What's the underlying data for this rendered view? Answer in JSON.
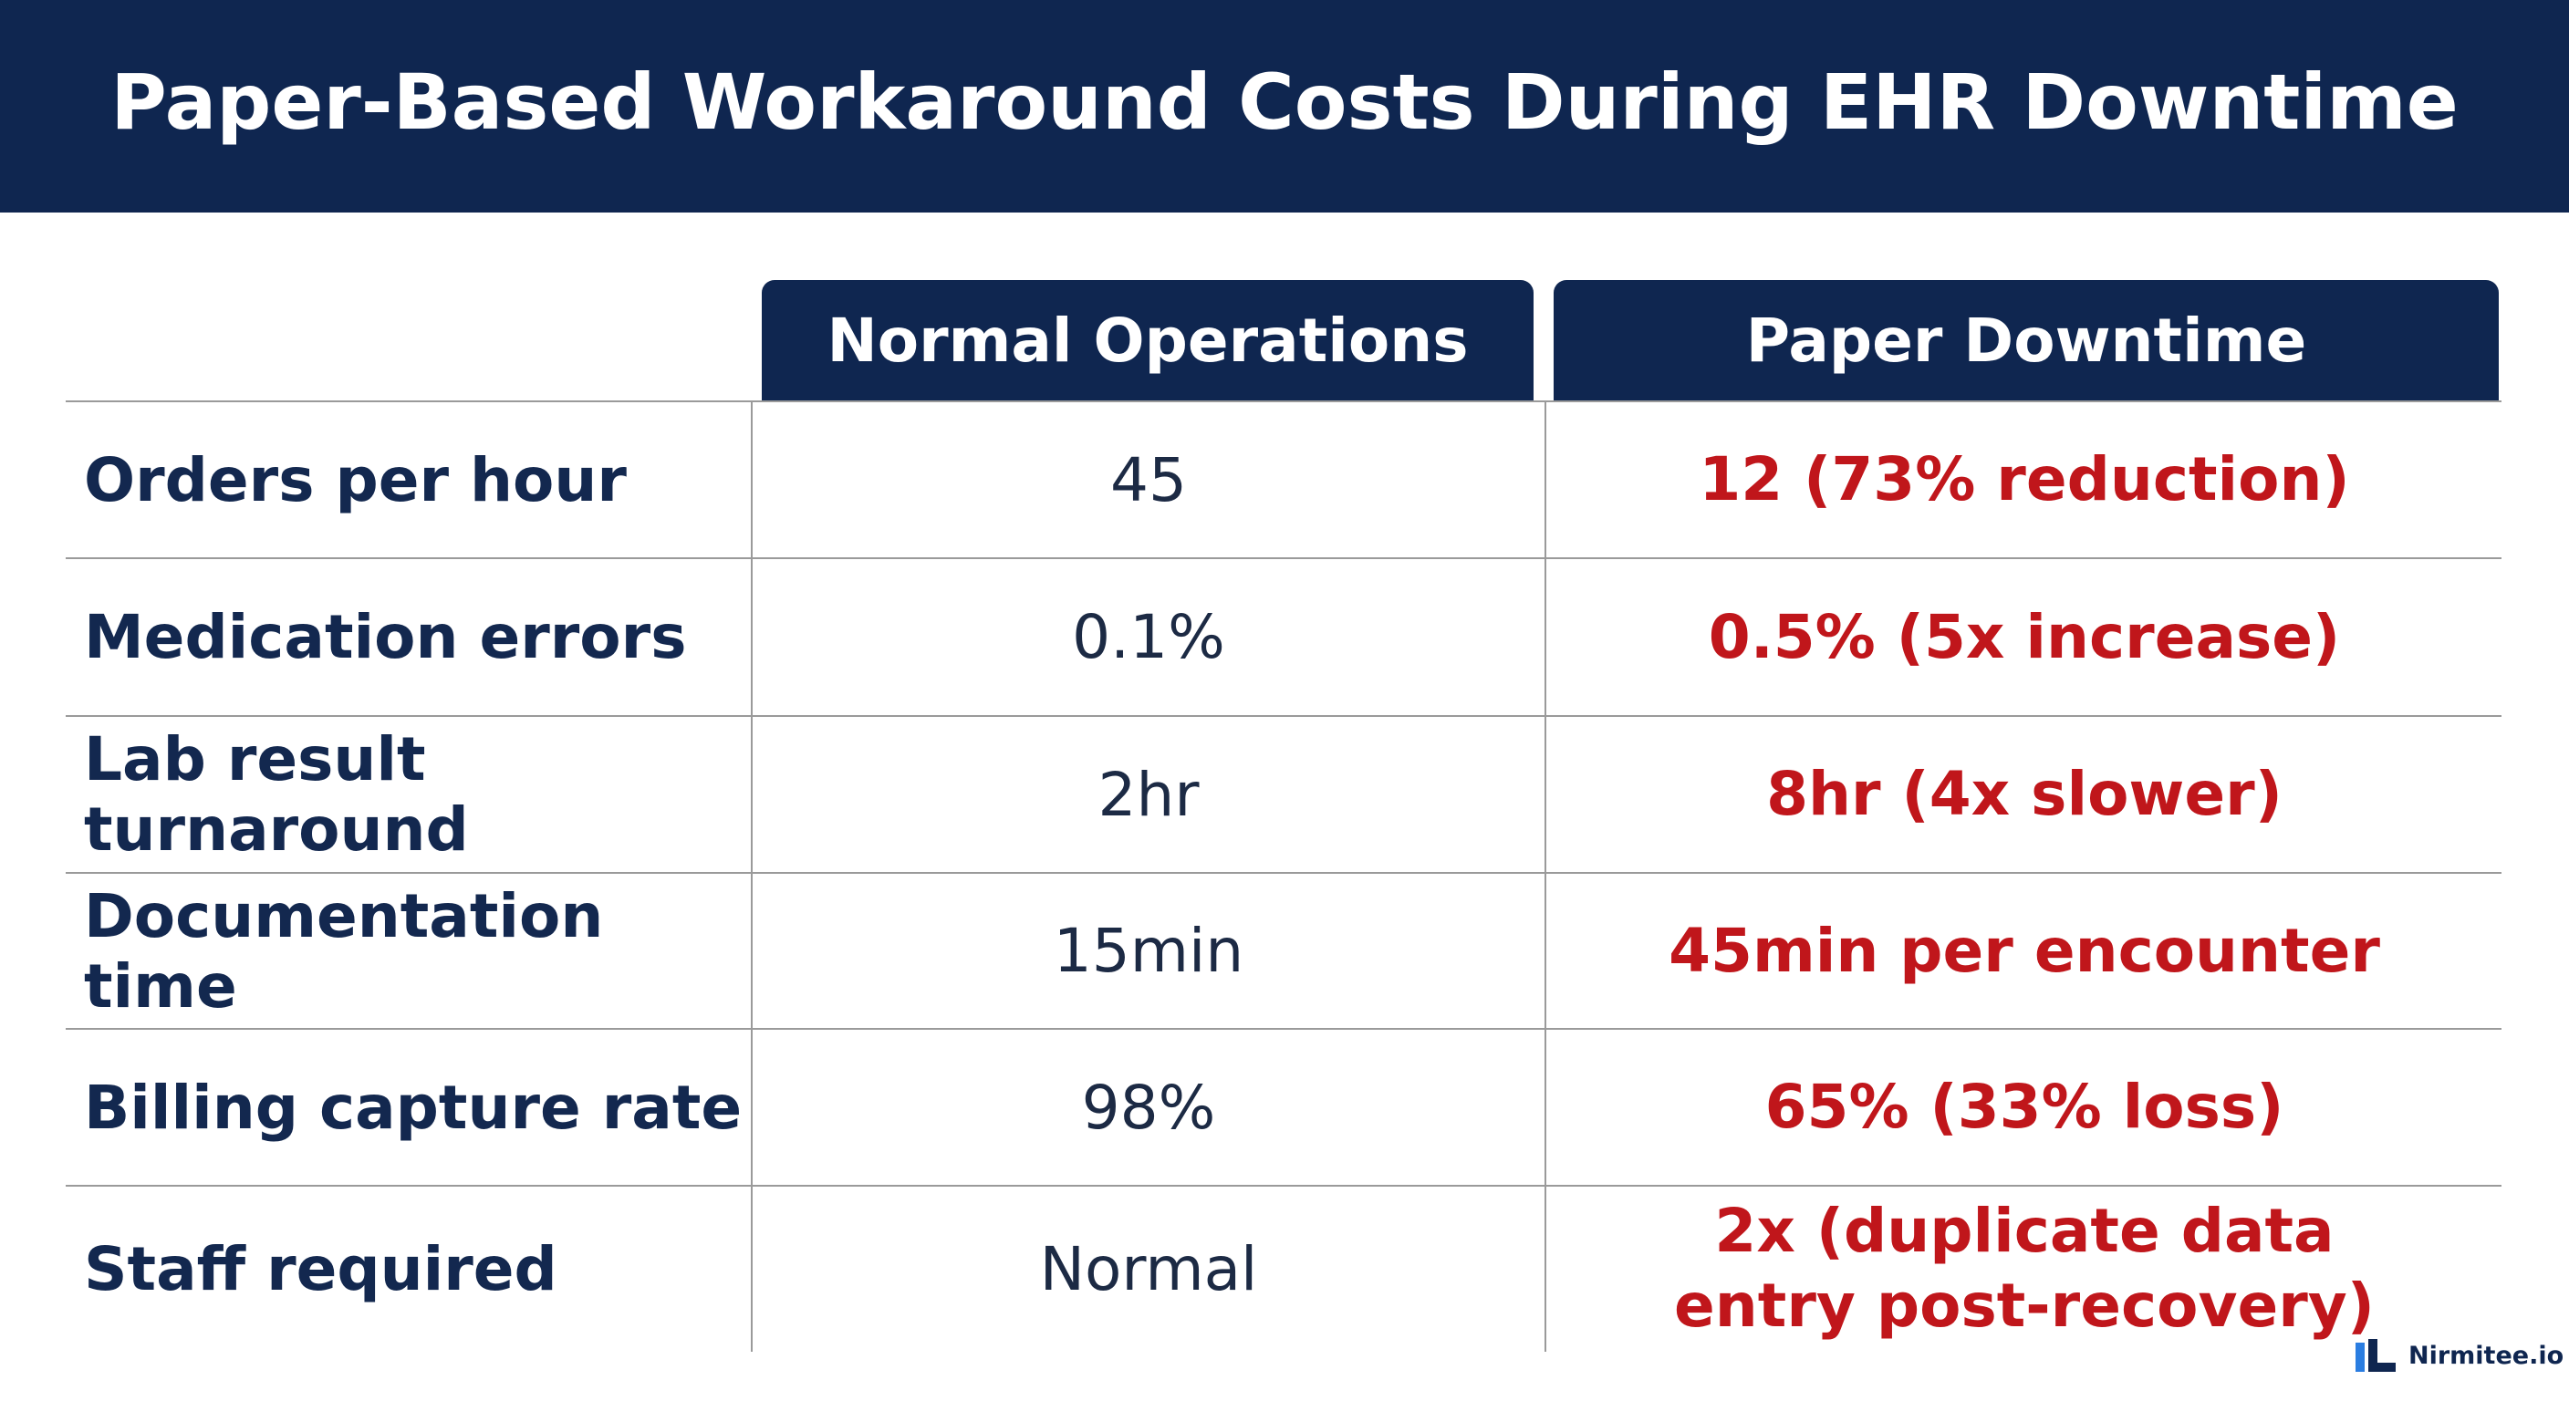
{
  "header": {
    "title": "Paper-Based Workaround Costs During EHR Downtime"
  },
  "table": {
    "columns": [
      "Normal Operations",
      "Paper Downtime"
    ],
    "rows": [
      [
        "Orders per hour",
        "45",
        "12 (73% reduction)"
      ],
      [
        "Medication errors",
        "0.1%",
        "0.5% (5x increase)"
      ],
      [
        "Lab result turnaround",
        "2hr",
        "8hr (4x slower)"
      ],
      [
        "Documentation time",
        "15min",
        "45min per encounter"
      ],
      [
        "Billing capture rate",
        "98%",
        "65% (33% loss)"
      ],
      [
        "Staff required",
        "Normal",
        "2x (duplicate data entry post-recovery)"
      ]
    ]
  },
  "footer": {
    "logo": "Nirmitee.io"
  }
}
